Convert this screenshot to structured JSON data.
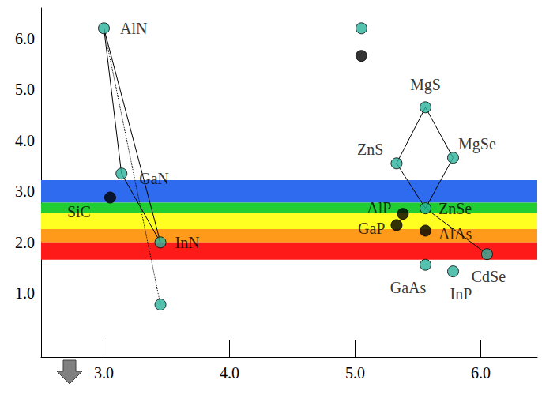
{
  "chart_data": {
    "type": "scatter",
    "xlim": [
      2.5,
      6.45
    ],
    "xticks": [
      {
        "value": 3,
        "label": "3.0"
      },
      {
        "value": 4,
        "label": "4.0"
      },
      {
        "value": 5,
        "label": "5.0"
      },
      {
        "value": 6,
        "label": "6.0"
      }
    ],
    "ylim": [
      -0.25,
      6.6
    ],
    "yticks": [
      {
        "value": 1,
        "label": "1.0"
      },
      {
        "value": 2,
        "label": "2.0"
      },
      {
        "value": 3,
        "label": "3.0"
      },
      {
        "value": 4,
        "label": "4.0"
      },
      {
        "value": 5,
        "label": "5.0"
      },
      {
        "value": 6,
        "label": "6.0"
      }
    ],
    "grid": false,
    "points": {
      "labels": [
        "AlN",
        "GaN",
        "InN",
        null,
        "SiC",
        null,
        null,
        "MgS",
        "ZnS",
        "MgSe",
        "ZnSe",
        "AlP",
        "GaP",
        "AlAs",
        "GaAs",
        "InP",
        "CdSe"
      ],
      "x": [
        3.0,
        3.14,
        3.45,
        3.45,
        3.05,
        5.05,
        5.05,
        5.56,
        5.33,
        5.78,
        5.56,
        5.38,
        5.33,
        5.56,
        5.56,
        5.78,
        6.05
      ],
      "y": [
        6.2,
        3.35,
        2.0,
        0.78,
        2.88,
        6.2,
        5.66,
        4.65,
        3.55,
        3.66,
        2.67,
        2.56,
        2.34,
        2.23,
        1.56,
        1.43,
        1.77
      ],
      "colors": [
        "#2bb39c",
        "#2bb39c",
        "#2bb39c",
        "#2bb39c",
        "#000000",
        "#2bb39c",
        "#000000",
        "#2bb39c",
        "#2bb39c",
        "#2bb39c",
        "#2bb39c",
        "#000000",
        "#000000",
        "#000000",
        "#2bb39c",
        "#2bb39c",
        "#2bb39c"
      ]
    },
    "lines": [
      {
        "from": 0,
        "to": 1,
        "line_style": "solid"
      },
      {
        "from": 0,
        "to": 2,
        "line_style": "solid"
      },
      {
        "from": 1,
        "to": 2,
        "line_style": "solid"
      },
      {
        "from": 0,
        "to": 3,
        "line_style": "dotted"
      },
      {
        "from": 7,
        "to": 8,
        "line_style": "solid"
      },
      {
        "from": 7,
        "to": 9,
        "line_style": "solid"
      },
      {
        "from": 9,
        "to": 10,
        "line_style": "solid"
      },
      {
        "from": 8,
        "to": 10,
        "line_style": "solid"
      },
      {
        "from": 10,
        "to": 16,
        "line_style": "solid"
      }
    ],
    "bands": [
      {
        "from": 2.78,
        "to": 3.22,
        "color": "#2f6bef"
      },
      {
        "from": 2.58,
        "to": 2.78,
        "color": "#22cc33"
      },
      {
        "from": 2.26,
        "to": 2.58,
        "color": "#ffff22"
      },
      {
        "from": 2.0,
        "to": 2.26,
        "color": "#ff9a1a"
      },
      {
        "from": 1.66,
        "to": 2.0,
        "color": "#ff1a1a"
      }
    ]
  }
}
